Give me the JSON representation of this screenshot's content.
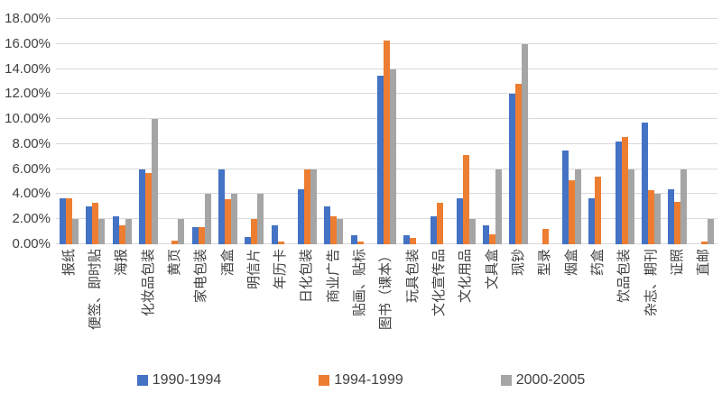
{
  "chart_data": {
    "type": "bar",
    "title": "",
    "xlabel": "",
    "ylabel": "",
    "ylim": [
      0,
      18
    ],
    "ytick_step": 2,
    "grid": true,
    "legend_position": "bottom",
    "y_ticks": [
      "0.00%",
      "2.00%",
      "4.00%",
      "6.00%",
      "8.00%",
      "10.00%",
      "12.00%",
      "14.00%",
      "16.00%",
      "18.00%"
    ],
    "categories": [
      "报纸",
      "便签、即时贴",
      "海报",
      "化妆品包装",
      "黄页",
      "家电包装",
      "酒盒",
      "明信片",
      "年历卡",
      "日化包装",
      "商业广告",
      "贴画、贴标",
      "图书（课本）",
      "玩具包装",
      "文化宣传品",
      "文化用品",
      "文具盒",
      "现钞",
      "型录",
      "烟盒",
      "药盒",
      "饮品包装",
      "杂志、期刊",
      "证照",
      "直邮"
    ],
    "series": [
      {
        "name": "1990-1994",
        "color": "#4472C4",
        "values": [
          3.7,
          3.0,
          2.2,
          6.0,
          0,
          1.4,
          6.0,
          0.6,
          1.5,
          4.4,
          3.0,
          0.7,
          13.5,
          0.7,
          2.2,
          3.7,
          1.5,
          12.0,
          0,
          7.5,
          3.7,
          8.2,
          9.7,
          4.4,
          0
        ]
      },
      {
        "name": "1994-1999",
        "color": "#ED7D31",
        "values": [
          3.7,
          3.3,
          1.5,
          5.7,
          0.3,
          1.4,
          3.6,
          2.0,
          0.2,
          6.0,
          2.2,
          0.2,
          16.3,
          0.5,
          3.3,
          7.1,
          0.8,
          12.8,
          1.2,
          5.1,
          5.4,
          8.6,
          4.3,
          3.4,
          0.2
        ]
      },
      {
        "name": "2000-2005",
        "color": "#A5A5A5",
        "values": [
          2.0,
          2.0,
          2.0,
          10.0,
          2.0,
          4.0,
          4.0,
          4.0,
          0,
          6.0,
          2.0,
          0,
          14.0,
          0,
          0,
          2.0,
          6.0,
          16.0,
          0,
          6.0,
          0,
          6.0,
          4.0,
          6.0,
          2.0
        ]
      }
    ],
    "colors": {
      "background": "#FFFFFF",
      "gridline": "#D9D9D9",
      "text": "#404040"
    }
  }
}
